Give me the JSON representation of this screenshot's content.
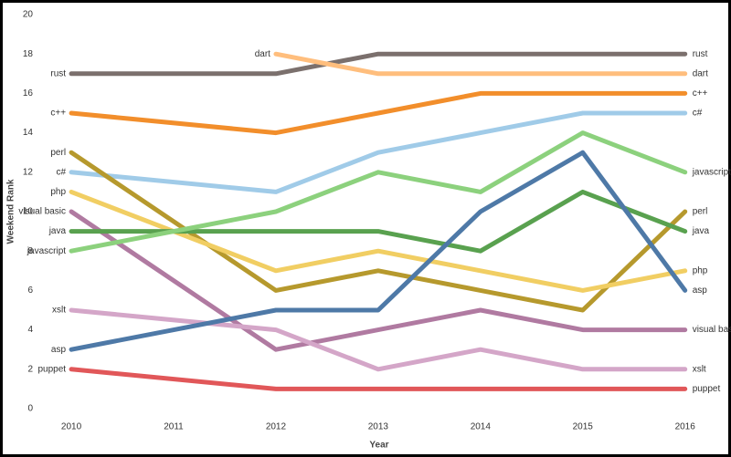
{
  "chart_data": {
    "type": "line",
    "x_label": "Year",
    "y_label": "Weekend Rank",
    "x": [
      2010,
      2012,
      2013,
      2014,
      2015,
      2016
    ],
    "xlim": [
      2009.66,
      2016.36
    ],
    "xticks": [
      2010,
      2011,
      2012,
      2013,
      2014,
      2015,
      2016
    ],
    "ylim": [
      0,
      20
    ],
    "yticks": [
      0,
      2,
      4,
      6,
      8,
      10,
      12,
      14,
      16,
      18,
      20
    ],
    "grid": false,
    "series": [
      {
        "name": "rust",
        "color": "#7b706d",
        "values": [
          17,
          17,
          18,
          18,
          18,
          18
        ]
      },
      {
        "name": "dart",
        "color": "#ffbe7d",
        "values": [
          null,
          18,
          17,
          17,
          17,
          17
        ]
      },
      {
        "name": "c++",
        "color": "#f28e2b",
        "values": [
          15,
          14,
          15,
          16,
          16,
          16
        ]
      },
      {
        "name": "c#",
        "color": "#a0cbe8",
        "values": [
          12,
          11,
          13,
          14,
          15,
          15
        ]
      },
      {
        "name": "perl",
        "color": "#b6992d",
        "values": [
          13,
          6,
          7,
          6,
          5,
          10
        ]
      },
      {
        "name": "php",
        "color": "#f1ce63",
        "values": [
          11,
          7,
          8,
          7,
          6,
          7
        ]
      },
      {
        "name": "visual basic",
        "color": "#b07aa1",
        "values": [
          10,
          3,
          4,
          5,
          4,
          4
        ]
      },
      {
        "name": "java",
        "color": "#59a14f",
        "values": [
          9,
          9,
          9,
          8,
          11,
          9
        ]
      },
      {
        "name": "javascript",
        "color": "#8cd17d",
        "values": [
          8,
          10,
          12,
          11,
          14,
          12
        ]
      },
      {
        "name": "xslt",
        "color": "#d4a6c8",
        "values": [
          5,
          4,
          2,
          3,
          2,
          2
        ]
      },
      {
        "name": "asp",
        "color": "#4e79a7",
        "values": [
          3,
          5,
          5,
          10,
          13,
          6
        ]
      },
      {
        "name": "puppet",
        "color": "#e15759",
        "values": [
          2,
          1,
          1,
          1,
          1,
          1
        ]
      }
    ]
  }
}
